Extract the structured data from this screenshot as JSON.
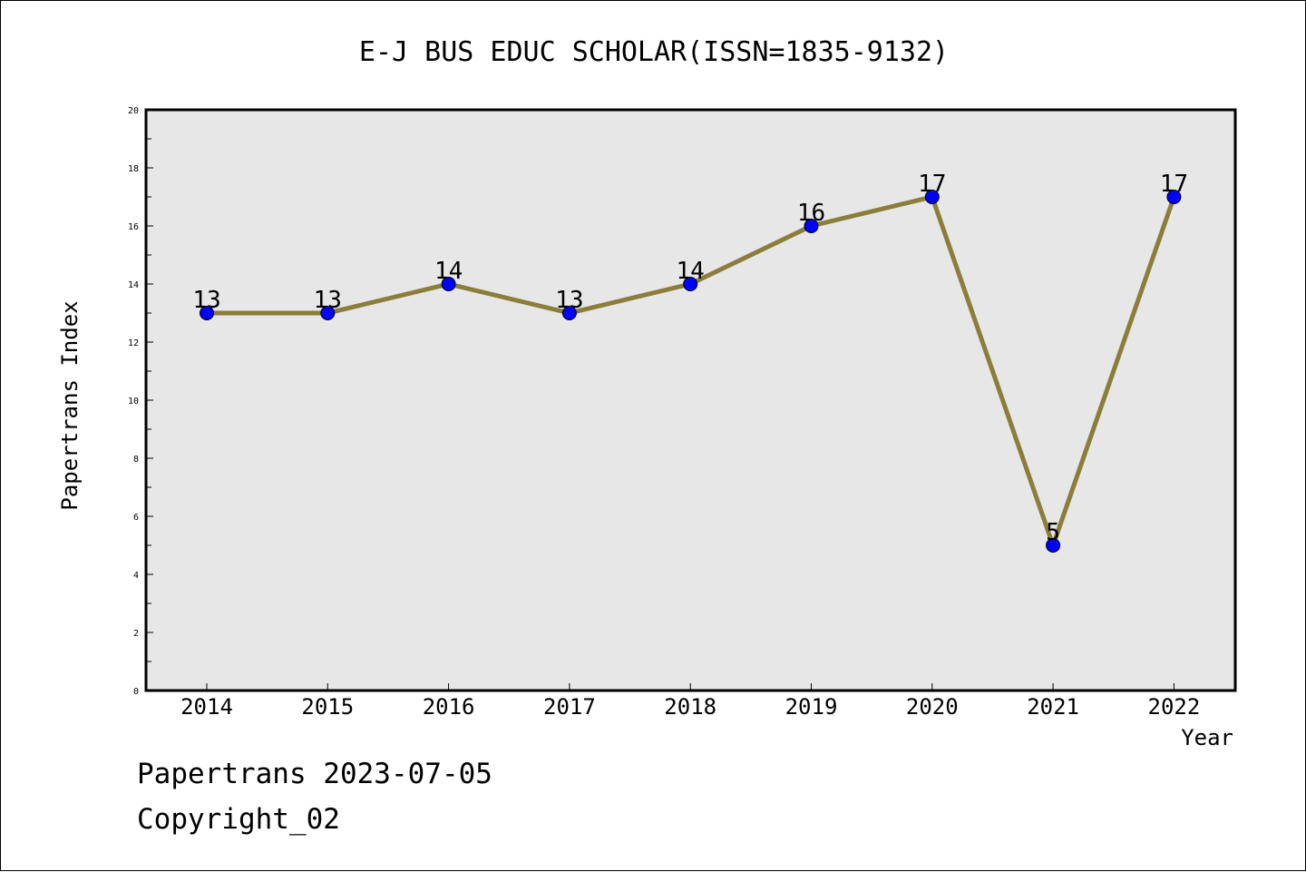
{
  "chart_data": {
    "type": "line",
    "title": "E-J BUS EDUC SCHOLAR(ISSN=1835-9132)",
    "xlabel": "Year",
    "ylabel": "Papertrans Index",
    "categories": [
      "2014",
      "2015",
      "2016",
      "2017",
      "2018",
      "2019",
      "2020",
      "2021",
      "2022"
    ],
    "values": [
      13,
      13,
      14,
      13,
      14,
      16,
      17,
      5,
      17
    ],
    "ylim": [
      0,
      20
    ],
    "yticks": [
      0,
      2,
      4,
      6,
      8,
      10,
      12,
      14,
      16,
      18,
      20
    ],
    "grid": false,
    "colors": {
      "line": "#8b7d3a",
      "marker": "#0000ff",
      "plot_bg": "#e7e7e7"
    }
  },
  "footer": {
    "line1": "Papertrans 2023-07-05",
    "line2": "Copyright_02"
  }
}
